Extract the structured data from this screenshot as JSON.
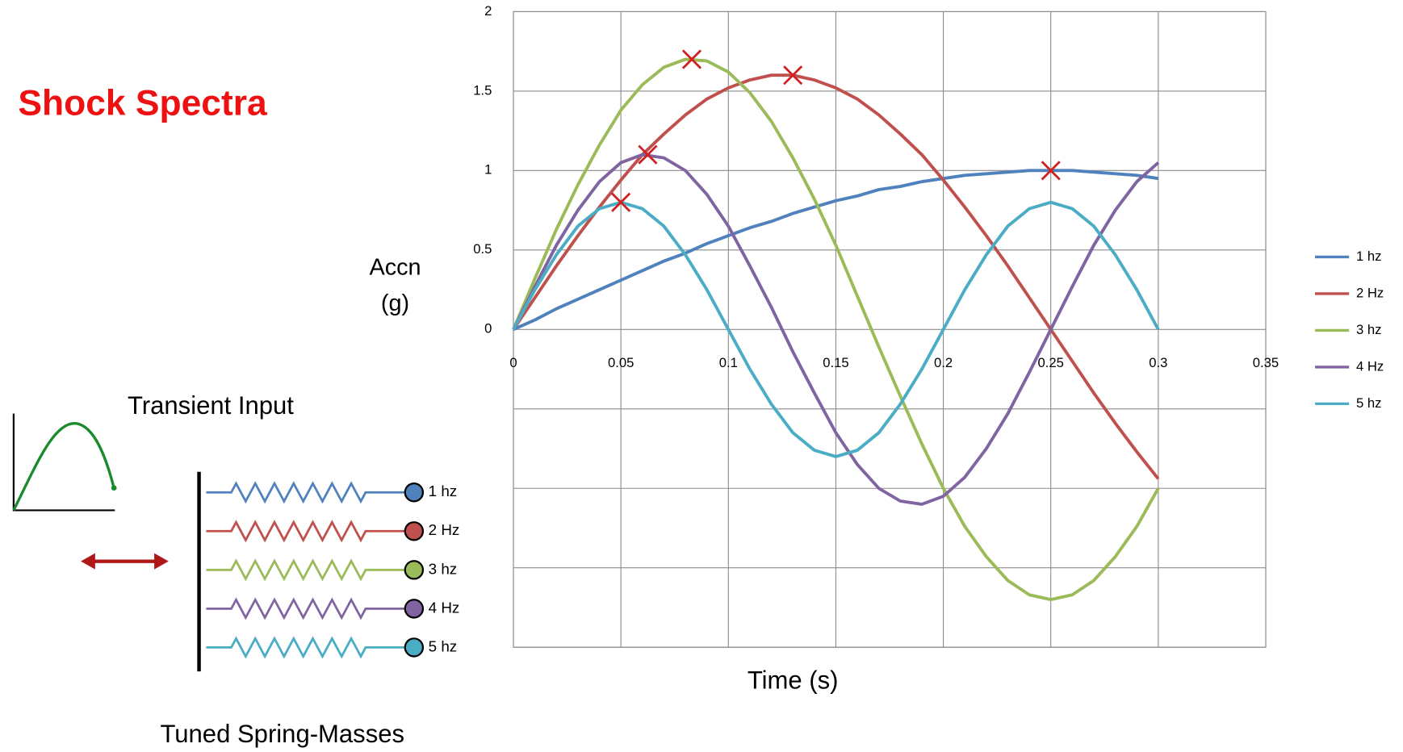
{
  "chart_data": {
    "type": "line",
    "title": "Shock Spectra",
    "x_label": "Time (s)",
    "y_label": [
      "Accn",
      "(g)"
    ],
    "x": [
      0,
      0.01,
      0.02,
      0.03,
      0.04,
      0.05,
      0.06,
      0.07,
      0.08,
      0.09,
      0.1,
      0.11,
      0.12,
      0.13,
      0.14,
      0.15,
      0.16,
      0.17,
      0.18,
      0.19,
      0.2,
      0.21,
      0.22,
      0.23,
      0.24,
      0.25,
      0.26,
      0.27,
      0.28,
      0.29,
      0.3
    ],
    "series": [
      {
        "name": "1 hz",
        "color": "#4f81bd",
        "values": [
          0,
          0.06,
          0.13,
          0.19,
          0.25,
          0.31,
          0.37,
          0.43,
          0.48,
          0.54,
          0.59,
          0.64,
          0.68,
          0.73,
          0.77,
          0.81,
          0.84,
          0.88,
          0.9,
          0.93,
          0.95,
          0.97,
          0.98,
          0.99,
          1,
          1,
          1,
          0.99,
          0.98,
          0.97,
          0.95
        ]
      },
      {
        "name": "2 Hz",
        "color": "#c0504d",
        "values": [
          0,
          0.2,
          0.4,
          0.59,
          0.77,
          0.94,
          1.1,
          1.23,
          1.35,
          1.45,
          1.52,
          1.57,
          1.6,
          1.6,
          1.57,
          1.52,
          1.45,
          1.35,
          1.23,
          1.1,
          0.94,
          0.77,
          0.59,
          0.4,
          0.2,
          0,
          -0.2,
          -0.4,
          -0.59,
          -0.77,
          -0.94
        ]
      },
      {
        "name": "3 hz",
        "color": "#9bbb59",
        "values": [
          0,
          0.32,
          0.63,
          0.91,
          1.16,
          1.38,
          1.54,
          1.65,
          1.7,
          1.69,
          1.62,
          1.49,
          1.31,
          1.08,
          0.82,
          0.53,
          0.21,
          -0.11,
          -0.42,
          -0.72,
          -1.0,
          -1.24,
          -1.43,
          -1.58,
          -1.67,
          -1.7,
          -1.67,
          -1.58,
          -1.43,
          -1.24,
          -1.0
        ]
      },
      {
        "name": "4 Hz",
        "color": "#8064a2",
        "values": [
          0,
          0.27,
          0.53,
          0.75,
          0.93,
          1.05,
          1.1,
          1.08,
          1.0,
          0.85,
          0.65,
          0.4,
          0.14,
          -0.14,
          -0.4,
          -0.65,
          -0.85,
          -1.0,
          -1.08,
          -1.1,
          -1.05,
          -0.93,
          -0.75,
          -0.53,
          -0.27,
          0,
          0.27,
          0.53,
          0.75,
          0.93,
          1.05
        ]
      },
      {
        "name": "5 hz",
        "color": "#4bacc6",
        "values": [
          0,
          0.25,
          0.47,
          0.65,
          0.76,
          0.8,
          0.76,
          0.65,
          0.47,
          0.25,
          0,
          -0.25,
          -0.47,
          -0.65,
          -0.76,
          -0.8,
          -0.76,
          -0.65,
          -0.47,
          -0.25,
          0,
          0.25,
          0.47,
          0.65,
          0.76,
          0.8,
          0.76,
          0.65,
          0.47,
          0.25,
          0
        ]
      }
    ],
    "peaks": {
      "color": "#d02020",
      "x": [
        0.05,
        0.0625,
        0.083,
        0.13,
        0.25
      ],
      "y": [
        0.8,
        1.1,
        1.7,
        1.6,
        1
      ]
    },
    "xlim": [
      0,
      0.35
    ],
    "xticks": [
      0,
      0.05,
      0.1,
      0.15,
      0.2,
      0.25,
      0.3,
      0.35
    ],
    "ylim": [
      -2,
      2
    ],
    "yticks": [
      0,
      0.5,
      1,
      1.5,
      2
    ],
    "ygrid": [
      -2,
      -1.5,
      -1,
      -0.5
    ],
    "grid": true,
    "legend": "right"
  },
  "diagram": {
    "input_label": "Transient Input",
    "springs_label": "Tuned Spring-Masses"
  }
}
